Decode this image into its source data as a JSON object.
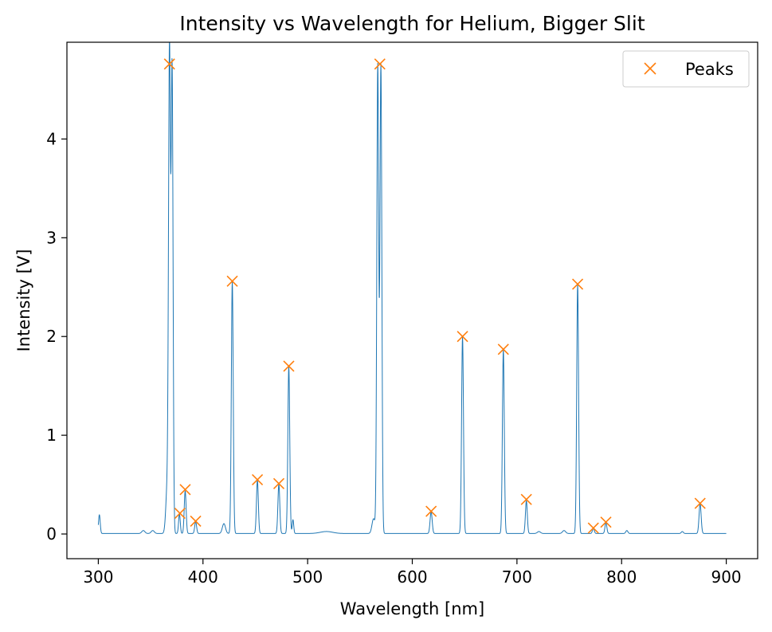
{
  "chart_data": {
    "type": "line",
    "title": "Intensity vs Wavelength for Helium, Bigger Slit",
    "xlabel": "Wavelength [nm]",
    "ylabel": "Intensity [V]",
    "xlim": [
      270,
      930
    ],
    "ylim": [
      -0.25,
      4.98
    ],
    "x_ticks": [
      300,
      400,
      500,
      600,
      700,
      800,
      900
    ],
    "y_ticks": [
      0,
      1,
      2,
      3,
      4
    ],
    "grid": false,
    "legend": {
      "position": "top-right",
      "entries": [
        {
          "label": "Peaks",
          "marker": "x",
          "color": "#ff7f0e"
        }
      ]
    },
    "series": [
      {
        "name": "",
        "style": "line",
        "color": "#1f77b4",
        "baseline": 0.005,
        "x_range": [
          300,
          900
        ],
        "lines": [
          {
            "center": 301,
            "height": 0.19,
            "width": 0.8
          },
          {
            "center": 343,
            "height": 0.03,
            "width": 1.5
          },
          {
            "center": 352,
            "height": 0.03,
            "width": 1.5
          },
          {
            "center": 366,
            "height": 0.5,
            "width": 1.4
          },
          {
            "center": 368,
            "height": 4.74,
            "width": 0.9
          },
          {
            "center": 370.5,
            "height": 4.7,
            "width": 0.9
          },
          {
            "center": 377.5,
            "height": 0.2,
            "width": 0.8
          },
          {
            "center": 383,
            "height": 0.43,
            "width": 0.9
          },
          {
            "center": 393,
            "height": 0.12,
            "width": 0.9
          },
          {
            "center": 420,
            "height": 0.1,
            "width": 1.5
          },
          {
            "center": 428,
            "height": 2.55,
            "width": 0.9
          },
          {
            "center": 452,
            "height": 0.54,
            "width": 0.9
          },
          {
            "center": 472.5,
            "height": 0.5,
            "width": 0.9
          },
          {
            "center": 482,
            "height": 1.69,
            "width": 0.9
          },
          {
            "center": 486,
            "height": 0.14,
            "width": 0.7
          },
          {
            "center": 518,
            "height": 0.02,
            "width": 6
          },
          {
            "center": 563,
            "height": 0.15,
            "width": 1.5
          },
          {
            "center": 567,
            "height": 4.74,
            "width": 0.9
          },
          {
            "center": 570,
            "height": 4.74,
            "width": 0.9
          },
          {
            "center": 618,
            "height": 0.22,
            "width": 1.0
          },
          {
            "center": 648,
            "height": 1.99,
            "width": 0.9
          },
          {
            "center": 687,
            "height": 1.86,
            "width": 0.9
          },
          {
            "center": 709,
            "height": 0.33,
            "width": 0.9
          },
          {
            "center": 721,
            "height": 0.02,
            "width": 1.5
          },
          {
            "center": 745,
            "height": 0.03,
            "width": 1.5
          },
          {
            "center": 758,
            "height": 2.52,
            "width": 0.9
          },
          {
            "center": 773,
            "height": 0.05,
            "width": 0.9
          },
          {
            "center": 785,
            "height": 0.11,
            "width": 0.9
          },
          {
            "center": 805,
            "height": 0.03,
            "width": 1.0
          },
          {
            "center": 858,
            "height": 0.02,
            "width": 1.0
          },
          {
            "center": 875,
            "height": 0.3,
            "width": 1.0
          }
        ]
      },
      {
        "name": "Peaks",
        "style": "markers",
        "marker": "x",
        "color": "#ff7f0e",
        "points": [
          {
            "x": 368,
            "y": 4.76
          },
          {
            "x": 378,
            "y": 0.21
          },
          {
            "x": 383,
            "y": 0.45
          },
          {
            "x": 393,
            "y": 0.13
          },
          {
            "x": 428,
            "y": 2.56
          },
          {
            "x": 452,
            "y": 0.55
          },
          {
            "x": 472.5,
            "y": 0.51
          },
          {
            "x": 482,
            "y": 1.7
          },
          {
            "x": 569,
            "y": 4.76
          },
          {
            "x": 618,
            "y": 0.23
          },
          {
            "x": 648,
            "y": 2.0
          },
          {
            "x": 687,
            "y": 1.87
          },
          {
            "x": 709,
            "y": 0.35
          },
          {
            "x": 758,
            "y": 2.53
          },
          {
            "x": 773,
            "y": 0.06
          },
          {
            "x": 785,
            "y": 0.12
          },
          {
            "x": 875,
            "y": 0.31
          }
        ]
      }
    ]
  }
}
